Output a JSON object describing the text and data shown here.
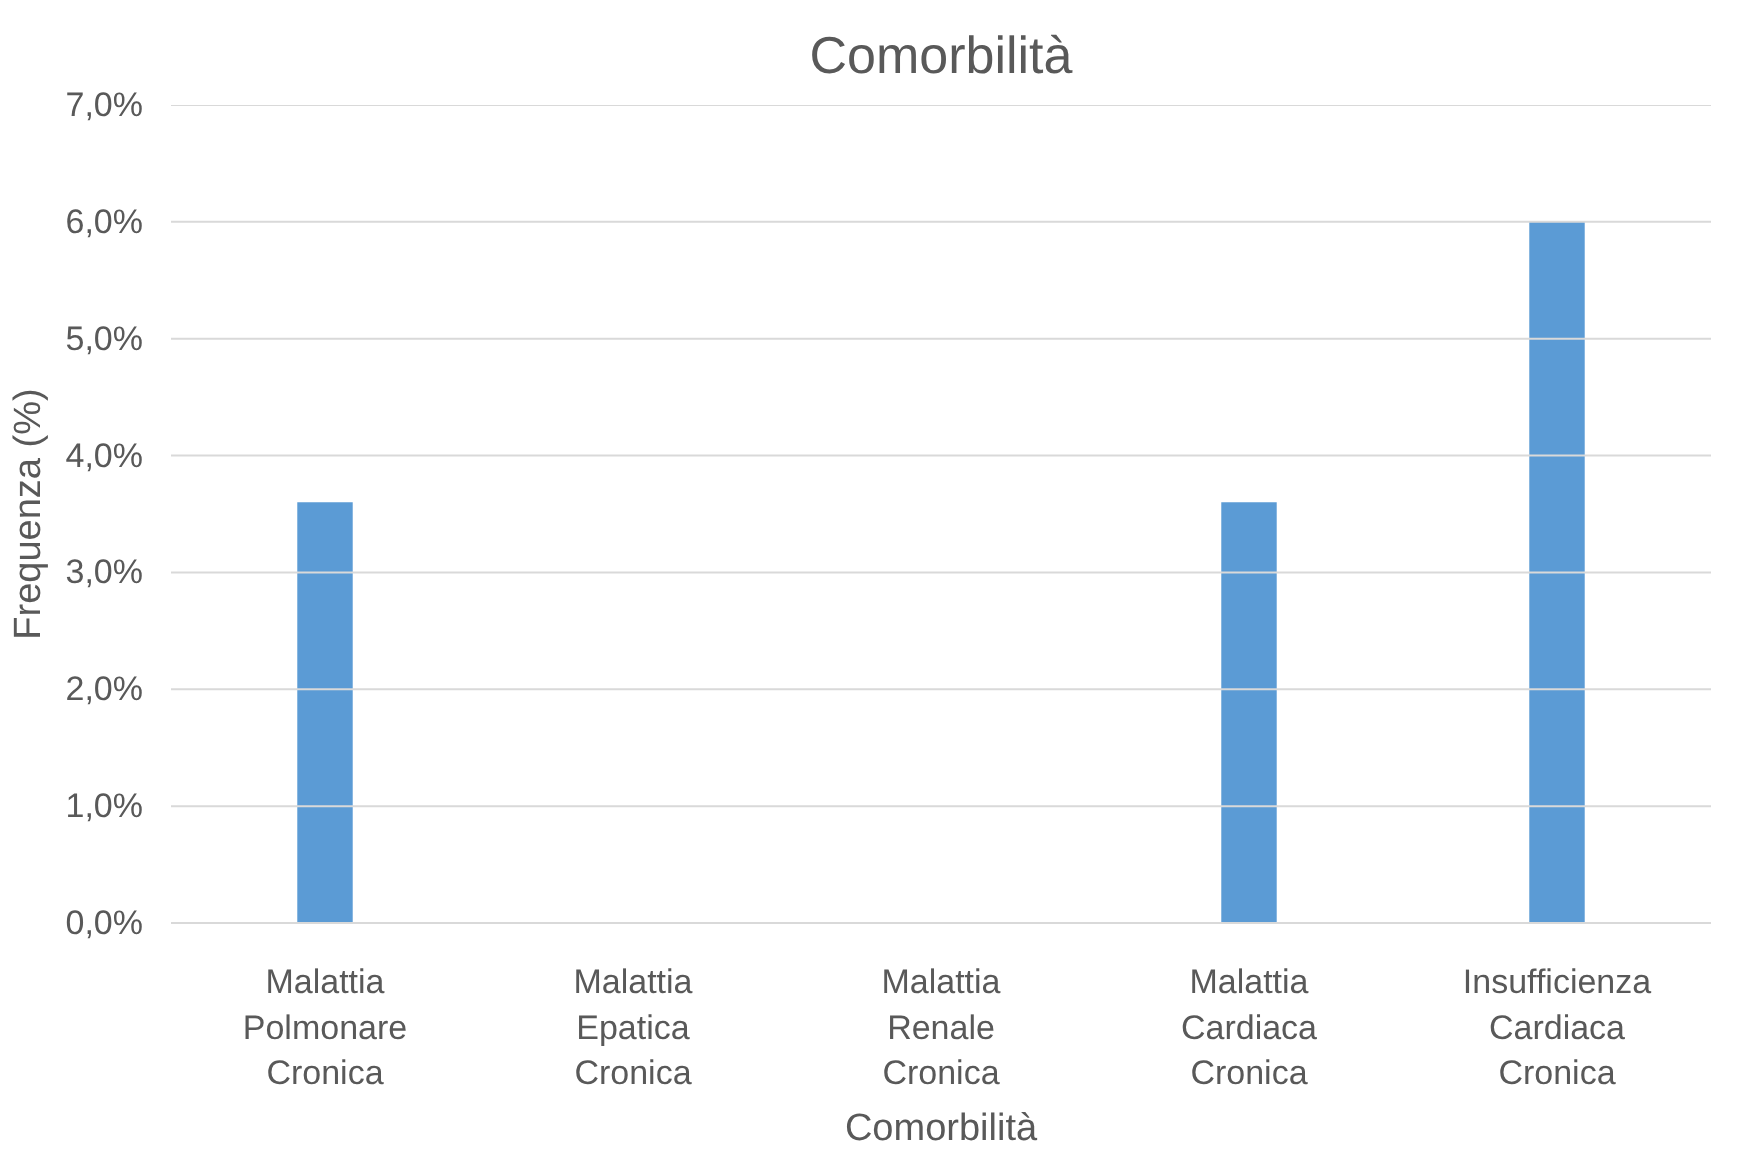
{
  "chart_data": {
    "type": "bar",
    "title": "Comorbilità",
    "xlabel": "Comorbilità",
    "ylabel": "Frequenza (%)",
    "categories": [
      "Malattia Polmonare Cronica",
      "Malattia Epatica Cronica",
      "Malattia Renale Cronica",
      "Malattia Cardiaca Cronica",
      "Insufficienza Cardiaca Cronica"
    ],
    "values": [
      3.6,
      0,
      0,
      3.6,
      6.0
    ],
    "color": "#5b9bd5",
    "ylim": [
      0,
      7
    ],
    "yticks": [
      {
        "value": 0,
        "label": "0,0%"
      },
      {
        "value": 1,
        "label": "1,0%"
      },
      {
        "value": 2,
        "label": "2,0%"
      },
      {
        "value": 3,
        "label": "3,0%"
      },
      {
        "value": 4,
        "label": "4,0%"
      },
      {
        "value": 5,
        "label": "5,0%"
      },
      {
        "value": 6,
        "label": "6,0%"
      },
      {
        "value": 7,
        "label": "7,0%"
      }
    ],
    "grid": "y"
  }
}
